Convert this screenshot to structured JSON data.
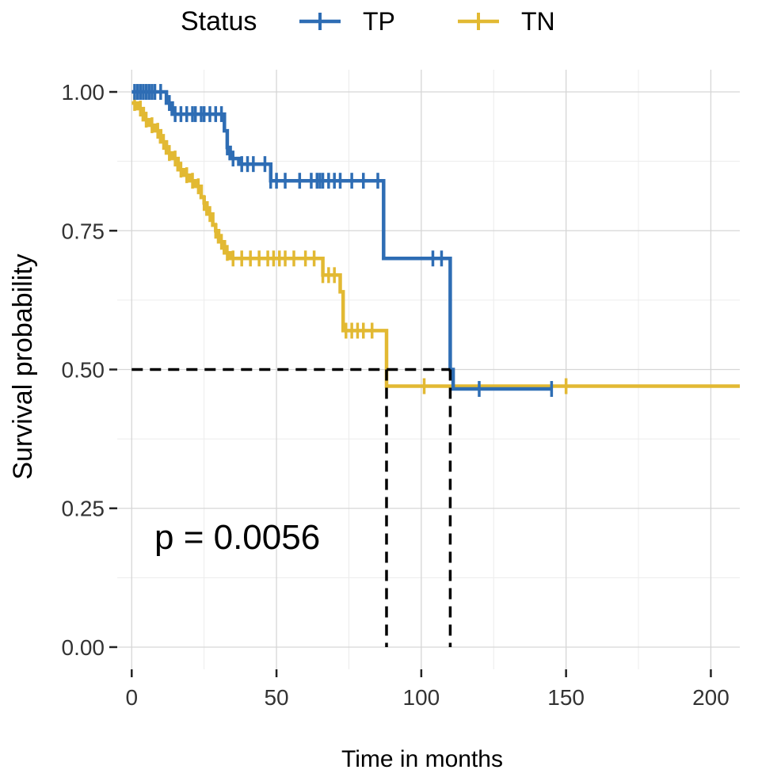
{
  "chart_data": {
    "type": "line",
    "step": true,
    "xlabel": "Time in months",
    "ylabel": "Survival probability",
    "xlim": [
      -5,
      210
    ],
    "ylim": [
      -0.04,
      1.04
    ],
    "xticks": [
      0,
      50,
      100,
      150,
      200
    ],
    "yticks": [
      0.0,
      0.25,
      0.5,
      0.75,
      1.0
    ],
    "ytick_labels": [
      "0.00",
      "0.25",
      "0.50",
      "0.75",
      "1.00"
    ],
    "grid": true,
    "legend": {
      "title": "Status",
      "position": "top",
      "entries": [
        "TP",
        "TN"
      ]
    },
    "annotation": "p = 0.0056",
    "median_survival": [
      {
        "series": "TP",
        "time": 110,
        "survival": 0.5
      },
      {
        "series": "TN",
        "time": 88,
        "survival": 0.5
      }
    ],
    "series": [
      {
        "name": "TP",
        "color": "#2e6db4",
        "steps": [
          [
            0,
            1.0
          ],
          [
            12,
            0.98
          ],
          [
            14,
            0.96
          ],
          [
            32,
            0.93
          ],
          [
            33,
            0.9
          ],
          [
            34,
            0.88
          ],
          [
            37,
            0.87
          ],
          [
            48,
            0.84
          ],
          [
            86,
            0.84
          ],
          [
            87,
            0.7
          ],
          [
            110,
            0.7
          ],
          [
            110,
            0.5
          ],
          [
            111,
            0.465
          ],
          [
            145,
            0.465
          ]
        ],
        "censor_times": [
          1,
          2,
          3,
          4,
          5,
          6,
          7,
          8,
          10,
          13,
          15,
          17,
          19,
          21,
          22,
          24,
          25,
          27,
          29,
          31,
          33,
          35,
          38,
          40,
          42,
          46,
          48,
          50,
          53,
          58,
          62,
          64,
          65,
          66,
          68,
          70,
          72,
          76,
          80,
          85,
          104,
          107,
          120,
          145
        ]
      },
      {
        "name": "TN",
        "color": "#e2b933",
        "steps": [
          [
            0,
            0.98
          ],
          [
            2,
            0.97
          ],
          [
            4,
            0.95
          ],
          [
            6,
            0.94
          ],
          [
            8,
            0.93
          ],
          [
            10,
            0.91
          ],
          [
            12,
            0.89
          ],
          [
            14,
            0.88
          ],
          [
            16,
            0.86
          ],
          [
            18,
            0.85
          ],
          [
            20,
            0.84
          ],
          [
            22,
            0.83
          ],
          [
            24,
            0.81
          ],
          [
            25,
            0.8
          ],
          [
            26,
            0.78
          ],
          [
            28,
            0.76
          ],
          [
            29,
            0.75
          ],
          [
            30,
            0.73
          ],
          [
            32,
            0.71
          ],
          [
            34,
            0.7
          ],
          [
            65,
            0.7
          ],
          [
            66,
            0.67
          ],
          [
            72,
            0.64
          ],
          [
            73,
            0.57
          ],
          [
            88,
            0.57
          ],
          [
            88,
            0.47
          ],
          [
            210,
            0.47
          ]
        ],
        "censor_times": [
          1,
          3,
          5,
          7,
          9,
          11,
          13,
          15,
          17,
          19,
          21,
          23,
          25,
          27,
          29,
          31,
          33,
          35,
          38,
          41,
          44,
          47,
          49,
          51,
          53,
          56,
          60,
          63,
          66,
          68,
          70,
          74,
          76,
          78,
          80,
          83,
          101,
          150
        ]
      }
    ]
  }
}
